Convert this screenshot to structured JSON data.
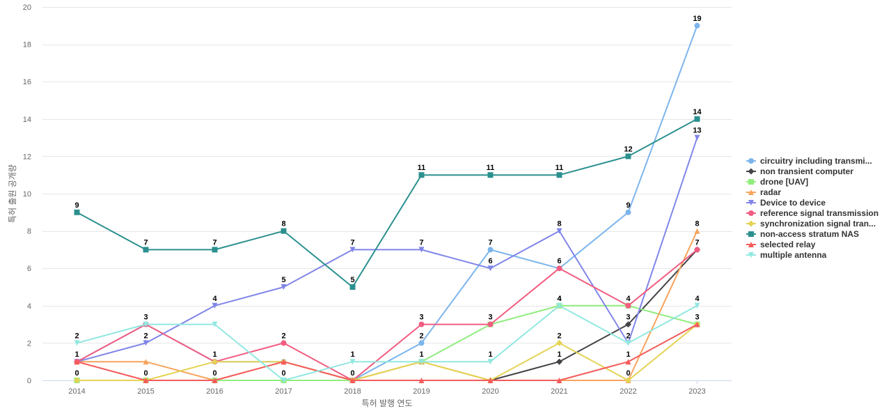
{
  "chart_data": {
    "type": "line",
    "title": "",
    "xlabel": "특허 발행 연도",
    "ylabel": "특허 출원 공개량",
    "ylim": [
      0,
      20
    ],
    "yticks": [
      0,
      2,
      4,
      6,
      8,
      10,
      12,
      14,
      16,
      18,
      20
    ],
    "grid": true,
    "legend_position": "right",
    "categories": [
      "2014",
      "2015",
      "2016",
      "2017",
      "2018",
      "2019",
      "2020",
      "2021",
      "2022",
      "2023"
    ],
    "series": [
      {
        "name": "circuitry including transmi...",
        "color": "#7cb5ec",
        "marker": "circle",
        "values": [
          1,
          3,
          1,
          1,
          0,
          2,
          7,
          6,
          9,
          19
        ],
        "labels": [
          false,
          false,
          false,
          false,
          false,
          true,
          true,
          false,
          true,
          true
        ]
      },
      {
        "name": "non transient computer",
        "color": "#434348",
        "marker": "diamond",
        "values": [
          null,
          null,
          null,
          null,
          null,
          null,
          0,
          1,
          3,
          7
        ],
        "labels": [
          false,
          false,
          false,
          false,
          false,
          false,
          false,
          true,
          true,
          false
        ]
      },
      {
        "name": "drone [UAV]",
        "color": "#90ed7d",
        "marker": "square",
        "values": [
          0,
          0,
          0,
          0,
          0,
          1,
          3,
          4,
          4,
          3
        ],
        "labels": [
          true,
          true,
          true,
          true,
          true,
          true,
          true,
          true,
          false,
          false
        ]
      },
      {
        "name": "radar",
        "color": "#f7a35c",
        "marker": "triangle",
        "values": [
          1,
          1,
          0,
          1,
          0,
          1,
          0,
          0,
          0,
          8
        ],
        "labels": [
          false,
          false,
          false,
          false,
          false,
          false,
          false,
          false,
          false,
          true
        ]
      },
      {
        "name": "Device to device",
        "color": "#8085e9",
        "marker": "triangle-down",
        "values": [
          1,
          2,
          4,
          5,
          7,
          7,
          6,
          8,
          2,
          13
        ],
        "labels": [
          false,
          true,
          true,
          true,
          true,
          true,
          true,
          true,
          true,
          true
        ]
      },
      {
        "name": "reference signal transmission",
        "color": "#f15c80",
        "marker": "circle",
        "values": [
          1,
          3,
          1,
          2,
          0,
          3,
          3,
          6,
          4,
          7
        ],
        "labels": [
          false,
          true,
          true,
          true,
          false,
          true,
          false,
          true,
          true,
          true
        ]
      },
      {
        "name": "synchronization signal tran...",
        "color": "#e4d354",
        "marker": "diamond",
        "values": [
          0,
          0,
          1,
          1,
          0,
          1,
          0,
          2,
          0,
          3
        ],
        "labels": [
          false,
          false,
          false,
          false,
          false,
          false,
          false,
          true,
          true,
          false
        ]
      },
      {
        "name": "non-access stratum NAS",
        "color": "#2b908f",
        "marker": "square",
        "values": [
          9,
          7,
          7,
          8,
          5,
          11,
          11,
          11,
          12,
          14
        ],
        "labels": [
          true,
          true,
          true,
          true,
          true,
          true,
          true,
          true,
          true,
          true
        ]
      },
      {
        "name": "selected relay",
        "color": "#f45b5b",
        "marker": "triangle",
        "values": [
          1,
          0,
          0,
          1,
          0,
          0,
          0,
          0,
          1,
          3
        ],
        "labels": [
          true,
          false,
          false,
          false,
          false,
          false,
          false,
          false,
          true,
          true
        ]
      },
      {
        "name": "multiple antenna",
        "color": "#91e8e1",
        "marker": "triangle-down",
        "values": [
          2,
          3,
          3,
          0,
          1,
          1,
          1,
          4,
          2,
          4
        ],
        "labels": [
          true,
          false,
          false,
          false,
          true,
          false,
          true,
          true,
          false,
          true
        ]
      }
    ]
  }
}
